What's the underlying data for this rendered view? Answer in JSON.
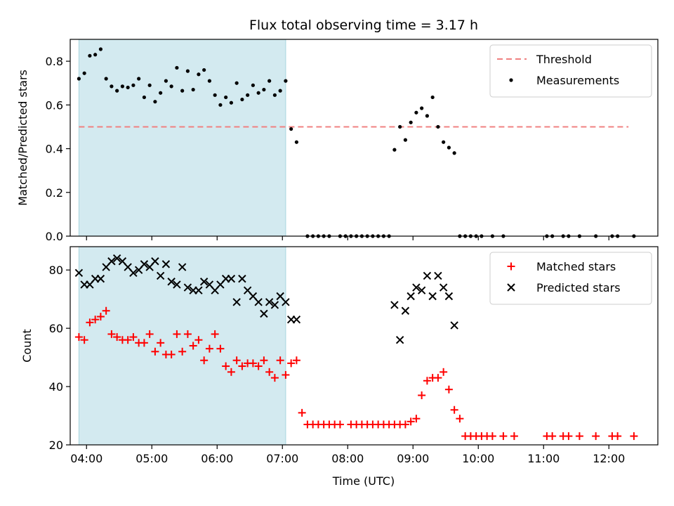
{
  "chart_data": [
    {
      "type": "scatter",
      "title": "Flux total observing time = 3.17 h",
      "ylabel": "Matched/Predicted stars",
      "xlabel": "",
      "x_type": "time",
      "xlim": [
        "03:45",
        "12:45"
      ],
      "ylim": [
        0,
        0.9
      ],
      "y_ticks": [
        0.0,
        0.2,
        0.4,
        0.6,
        0.8
      ],
      "y_tick_labels": [
        "0.0",
        "0.2",
        "0.4",
        "0.6",
        "0.8"
      ],
      "shaded_region": {
        "start": "03:53",
        "end": "07:03",
        "color": "#d3eaf0"
      },
      "legend_position": "top-right",
      "series": [
        {
          "name": "Threshold",
          "kind": "dashed-line",
          "color": "#f08080",
          "x": [
            "03:53",
            "12:18"
          ],
          "y": [
            0.5,
            0.5
          ]
        },
        {
          "name": "Measurements",
          "kind": "scatter-dot",
          "color": "#000000",
          "points": [
            [
              "03:53",
              0.72
            ],
            [
              "03:58",
              0.745
            ],
            [
              "04:03",
              0.825
            ],
            [
              "04:08",
              0.83
            ],
            [
              "04:13",
              0.855
            ],
            [
              "04:18",
              0.72
            ],
            [
              "04:23",
              0.685
            ],
            [
              "04:28",
              0.665
            ],
            [
              "04:33",
              0.685
            ],
            [
              "04:38",
              0.68
            ],
            [
              "04:43",
              0.69
            ],
            [
              "04:48",
              0.72
            ],
            [
              "04:53",
              0.635
            ],
            [
              "04:58",
              0.69
            ],
            [
              "05:03",
              0.615
            ],
            [
              "05:08",
              0.655
            ],
            [
              "05:13",
              0.71
            ],
            [
              "05:18",
              0.685
            ],
            [
              "05:23",
              0.77
            ],
            [
              "05:28",
              0.665
            ],
            [
              "05:33",
              0.755
            ],
            [
              "05:38",
              0.67
            ],
            [
              "05:43",
              0.74
            ],
            [
              "05:48",
              0.76
            ],
            [
              "05:53",
              0.71
            ],
            [
              "05:58",
              0.645
            ],
            [
              "06:03",
              0.6
            ],
            [
              "06:08",
              0.635
            ],
            [
              "06:13",
              0.61
            ],
            [
              "06:18",
              0.7
            ],
            [
              "06:23",
              0.625
            ],
            [
              "06:28",
              0.645
            ],
            [
              "06:33",
              0.69
            ],
            [
              "06:38",
              0.655
            ],
            [
              "06:43",
              0.67
            ],
            [
              "06:48",
              0.71
            ],
            [
              "06:53",
              0.645
            ],
            [
              "06:58",
              0.665
            ],
            [
              "07:03",
              0.71
            ],
            [
              "07:08",
              0.49
            ],
            [
              "07:13",
              0.43
            ],
            [
              "07:23",
              0.0
            ],
            [
              "07:28",
              0.0
            ],
            [
              "07:33",
              0.0
            ],
            [
              "07:38",
              0.0
            ],
            [
              "07:43",
              0.0
            ],
            [
              "07:53",
              0.0
            ],
            [
              "07:58",
              0.0
            ],
            [
              "08:03",
              0.0
            ],
            [
              "08:08",
              0.0
            ],
            [
              "08:13",
              0.0
            ],
            [
              "08:18",
              0.0
            ],
            [
              "08:23",
              0.0
            ],
            [
              "08:28",
              0.0
            ],
            [
              "08:33",
              0.0
            ],
            [
              "08:38",
              0.0
            ],
            [
              "08:43",
              0.395
            ],
            [
              "08:48",
              0.5
            ],
            [
              "08:53",
              0.44
            ],
            [
              "08:58",
              0.52
            ],
            [
              "09:03",
              0.565
            ],
            [
              "09:08",
              0.585
            ],
            [
              "09:13",
              0.55
            ],
            [
              "09:18",
              0.635
            ],
            [
              "09:23",
              0.5
            ],
            [
              "09:28",
              0.43
            ],
            [
              "09:33",
              0.405
            ],
            [
              "09:38",
              0.38
            ],
            [
              "09:43",
              0.0
            ],
            [
              "09:48",
              0.0
            ],
            [
              "09:53",
              0.0
            ],
            [
              "09:58",
              0.0
            ],
            [
              "10:03",
              0.0
            ],
            [
              "10:13",
              0.0
            ],
            [
              "10:23",
              0.0
            ],
            [
              "11:03",
              0.0
            ],
            [
              "11:08",
              0.0
            ],
            [
              "11:18",
              0.0
            ],
            [
              "11:23",
              0.0
            ],
            [
              "11:33",
              0.0
            ],
            [
              "11:48",
              0.0
            ],
            [
              "12:03",
              0.0
            ],
            [
              "12:08",
              0.0
            ],
            [
              "12:23",
              0.0
            ]
          ]
        }
      ]
    },
    {
      "type": "scatter",
      "title": "",
      "ylabel": "Count",
      "xlabel": "Time (UTC)",
      "x_type": "time",
      "xlim": [
        "03:45",
        "12:45"
      ],
      "ylim": [
        20,
        88
      ],
      "y_ticks": [
        20,
        40,
        60,
        80
      ],
      "y_tick_labels": [
        "20",
        "40",
        "60",
        "80"
      ],
      "x_ticks": [
        "04:00",
        "05:00",
        "06:00",
        "07:00",
        "08:00",
        "09:00",
        "10:00",
        "11:00",
        "12:00"
      ],
      "shaded_region": {
        "start": "03:53",
        "end": "07:03",
        "color": "#d3eaf0"
      },
      "legend_position": "top-right",
      "series": [
        {
          "name": "Matched stars",
          "kind": "plus",
          "color": "#ff0000",
          "points": [
            [
              "03:53",
              57
            ],
            [
              "03:58",
              56
            ],
            [
              "04:03",
              62
            ],
            [
              "04:08",
              63
            ],
            [
              "04:13",
              64
            ],
            [
              "04:18",
              66
            ],
            [
              "04:23",
              58
            ],
            [
              "04:28",
              57
            ],
            [
              "04:33",
              56
            ],
            [
              "04:38",
              56
            ],
            [
              "04:43",
              57
            ],
            [
              "04:48",
              55
            ],
            [
              "04:53",
              55
            ],
            [
              "04:58",
              58
            ],
            [
              "05:03",
              52
            ],
            [
              "05:08",
              55
            ],
            [
              "05:13",
              51
            ],
            [
              "05:18",
              51
            ],
            [
              "05:23",
              58
            ],
            [
              "05:28",
              52
            ],
            [
              "05:33",
              58
            ],
            [
              "05:38",
              54
            ],
            [
              "05:43",
              56
            ],
            [
              "05:48",
              49
            ],
            [
              "05:53",
              53
            ],
            [
              "05:58",
              58
            ],
            [
              "06:03",
              53
            ],
            [
              "06:08",
              47
            ],
            [
              "06:13",
              45
            ],
            [
              "06:18",
              49
            ],
            [
              "06:23",
              47
            ],
            [
              "06:28",
              48
            ],
            [
              "06:33",
              48
            ],
            [
              "06:38",
              47
            ],
            [
              "06:43",
              49
            ],
            [
              "06:48",
              45
            ],
            [
              "06:53",
              43
            ],
            [
              "06:58",
              49
            ],
            [
              "07:03",
              44
            ],
            [
              "07:08",
              48
            ],
            [
              "07:13",
              49
            ],
            [
              "07:18",
              31
            ],
            [
              "07:23",
              27
            ],
            [
              "07:28",
              27
            ],
            [
              "07:33",
              27
            ],
            [
              "07:38",
              27
            ],
            [
              "07:43",
              27
            ],
            [
              "07:48",
              27
            ],
            [
              "07:53",
              27
            ],
            [
              "08:03",
              27
            ],
            [
              "08:08",
              27
            ],
            [
              "08:13",
              27
            ],
            [
              "08:18",
              27
            ],
            [
              "08:23",
              27
            ],
            [
              "08:28",
              27
            ],
            [
              "08:33",
              27
            ],
            [
              "08:38",
              27
            ],
            [
              "08:43",
              27
            ],
            [
              "08:48",
              27
            ],
            [
              "08:53",
              27
            ],
            [
              "08:58",
              28
            ],
            [
              "09:03",
              29
            ],
            [
              "09:08",
              37
            ],
            [
              "09:13",
              42
            ],
            [
              "09:18",
              43
            ],
            [
              "09:23",
              43
            ],
            [
              "09:28",
              45
            ],
            [
              "09:33",
              39
            ],
            [
              "09:38",
              32
            ],
            [
              "09:43",
              29
            ],
            [
              "09:48",
              23
            ],
            [
              "09:53",
              23
            ],
            [
              "09:58",
              23
            ],
            [
              "10:03",
              23
            ],
            [
              "10:08",
              23
            ],
            [
              "10:13",
              23
            ],
            [
              "10:23",
              23
            ],
            [
              "10:33",
              23
            ],
            [
              "11:03",
              23
            ],
            [
              "11:08",
              23
            ],
            [
              "11:18",
              23
            ],
            [
              "11:23",
              23
            ],
            [
              "11:33",
              23
            ],
            [
              "11:48",
              23
            ],
            [
              "12:03",
              23
            ],
            [
              "12:08",
              23
            ],
            [
              "12:23",
              23
            ]
          ]
        },
        {
          "name": "Predicted stars",
          "kind": "cross",
          "color": "#000000",
          "points": [
            [
              "03:53",
              79
            ],
            [
              "03:58",
              75
            ],
            [
              "04:03",
              75
            ],
            [
              "04:08",
              77
            ],
            [
              "04:13",
              77
            ],
            [
              "04:18",
              81
            ],
            [
              "04:23",
              83
            ],
            [
              "04:28",
              84
            ],
            [
              "04:33",
              83
            ],
            [
              "04:38",
              81
            ],
            [
              "04:43",
              79
            ],
            [
              "04:48",
              80
            ],
            [
              "04:53",
              82
            ],
            [
              "04:58",
              81
            ],
            [
              "05:03",
              83
            ],
            [
              "05:08",
              78
            ],
            [
              "05:13",
              82
            ],
            [
              "05:18",
              76
            ],
            [
              "05:23",
              75
            ],
            [
              "05:28",
              81
            ],
            [
              "05:33",
              74
            ],
            [
              "05:38",
              73
            ],
            [
              "05:43",
              73
            ],
            [
              "05:48",
              76
            ],
            [
              "05:53",
              75
            ],
            [
              "05:58",
              73
            ],
            [
              "06:03",
              75
            ],
            [
              "06:08",
              77
            ],
            [
              "06:13",
              77
            ],
            [
              "06:18",
              69
            ],
            [
              "06:23",
              77
            ],
            [
              "06:28",
              73
            ],
            [
              "06:33",
              71
            ],
            [
              "06:38",
              69
            ],
            [
              "06:43",
              65
            ],
            [
              "06:48",
              69
            ],
            [
              "06:53",
              68
            ],
            [
              "06:58",
              71
            ],
            [
              "07:03",
              69
            ],
            [
              "07:08",
              63
            ],
            [
              "07:13",
              63
            ],
            [
              "08:43",
              68
            ],
            [
              "08:48",
              56
            ],
            [
              "08:53",
              66
            ],
            [
              "08:58",
              71
            ],
            [
              "09:03",
              74
            ],
            [
              "09:08",
              73
            ],
            [
              "09:13",
              78
            ],
            [
              "09:18",
              71
            ],
            [
              "09:23",
              78
            ],
            [
              "09:28",
              74
            ],
            [
              "09:33",
              71
            ],
            [
              "09:38",
              61
            ]
          ]
        }
      ]
    }
  ]
}
